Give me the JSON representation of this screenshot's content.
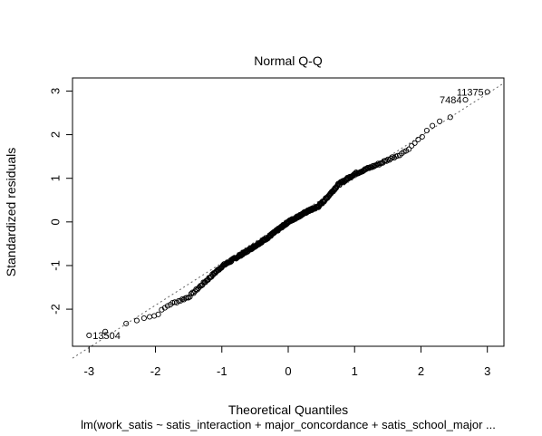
{
  "chart_data": {
    "type": "scatter",
    "title": "Normal Q-Q",
    "xlabel": "Theoretical Quantiles",
    "ylabel": "Standardized residuals",
    "subtitle": "lm(work_satis ~ satis_interaction + major_concordance + satis_school_major  ...",
    "xlim": [
      -3.25,
      3.25
    ],
    "ylim": [
      -2.85,
      3.3
    ],
    "x_ticks": [
      -3,
      -2,
      -1,
      0,
      1,
      2,
      3
    ],
    "y_ticks": [
      -2,
      -1,
      0,
      1,
      2,
      3
    ],
    "grid": false,
    "reference_line": {
      "intercept": 0.03,
      "slope": 0.97,
      "style": "dotted"
    },
    "labeled_points": [
      {
        "label": "11375",
        "x": 3.0,
        "y": 2.98
      },
      {
        "label": "7484",
        "x": 2.67,
        "y": 2.8
      },
      {
        "label": "13504",
        "x": -3.0,
        "y": -2.6
      }
    ],
    "qq_segments": [
      [
        -3.0,
        -2.6
      ],
      [
        -2.85,
        -2.55
      ],
      [
        -2.6,
        -2.45
      ],
      [
        -2.4,
        -2.3
      ],
      [
        -2.2,
        -2.2
      ],
      [
        -2.0,
        -2.15
      ],
      [
        -1.8,
        -1.9
      ],
      [
        -1.5,
        -1.72
      ],
      [
        -1.2,
        -1.3
      ],
      [
        -1.0,
        -1.02
      ],
      [
        -0.6,
        -0.65
      ],
      [
        -0.3,
        -0.35
      ],
      [
        0.0,
        0.0
      ],
      [
        0.3,
        0.25
      ],
      [
        0.45,
        0.35
      ],
      [
        0.55,
        0.5
      ],
      [
        0.75,
        0.85
      ],
      [
        1.0,
        1.1
      ],
      [
        1.4,
        1.35
      ],
      [
        1.75,
        1.6
      ],
      [
        1.9,
        1.8
      ],
      [
        2.0,
        1.95
      ],
      [
        2.2,
        2.25
      ],
      [
        2.5,
        2.42
      ]
    ]
  }
}
